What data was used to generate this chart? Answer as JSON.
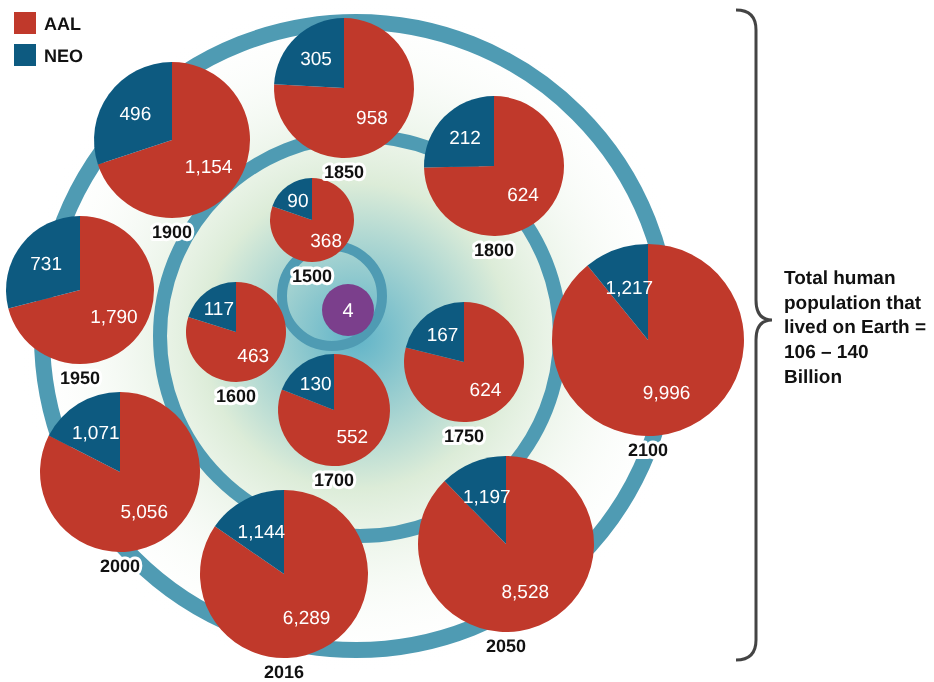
{
  "chart_data": [
    {
      "type": "pie",
      "title": "1500",
      "categories": [
        "AAL",
        "NEO"
      ],
      "values": [
        368,
        90
      ],
      "colors": [
        "#c0392b",
        "#0d5a80"
      ],
      "data_labels": true,
      "legend": "top left"
    },
    {
      "type": "pie",
      "title": "1600",
      "categories": [
        null,
        null
      ],
      "values": [
        463,
        117
      ],
      "colors": [
        "#c0392b",
        "#0d5a80"
      ],
      "data_labels": true
    },
    {
      "type": "pie",
      "title": "1700",
      "categories": [
        null,
        null
      ],
      "values": [
        552,
        130
      ],
      "colors": [
        "#c0392b",
        "#0d5a80"
      ],
      "data_labels": true
    },
    {
      "type": "pie",
      "title": "1750",
      "categories": [
        null,
        null
      ],
      "values": [
        624,
        167
      ],
      "colors": [
        "#c0392b",
        "#0d5a80"
      ],
      "data_labels": true
    },
    {
      "type": "pie",
      "title": "1800",
      "categories": [
        null,
        null
      ],
      "values": [
        624,
        212
      ],
      "colors": [
        "#c0392b",
        "#0d5a80"
      ],
      "data_labels": true
    },
    {
      "type": "pie",
      "title": "1850",
      "categories": [
        null,
        null
      ],
      "values": [
        958,
        305
      ],
      "colors": [
        "#c0392b",
        "#0d5a80"
      ],
      "data_labels": true
    },
    {
      "type": "pie",
      "title": "1900",
      "categories": [
        null,
        null
      ],
      "values": [
        1154,
        496
      ],
      "value_labels": [
        "1,154",
        "496"
      ],
      "colors": [
        "#c0392b",
        "#0d5a80"
      ]
    },
    {
      "type": "pie",
      "title": "1950",
      "categories": [
        null,
        null
      ],
      "values": [
        1790,
        731
      ],
      "value_labels": [
        "1,790",
        "731"
      ],
      "colors": [
        "#c0392b",
        "#0d5a80"
      ]
    },
    {
      "type": "pie",
      "title": "2000",
      "categories": [
        null,
        null
      ],
      "values": [
        5056,
        1071
      ],
      "value_labels": [
        "5,056",
        "1,071"
      ],
      "colors": [
        "#c0392b",
        "#0d5a80"
      ]
    },
    {
      "type": "pie",
      "title": "2016",
      "categories": [
        null,
        null
      ],
      "values": [
        6289,
        1144
      ],
      "value_labels": [
        "6,289",
        "1,144"
      ],
      "colors": [
        "#c0392b",
        "#0d5a80"
      ]
    },
    {
      "type": "pie",
      "title": "2050",
      "categories": [
        null,
        null
      ],
      "values": [
        8528,
        1197
      ],
      "value_labels": [
        "8,528",
        "1,197"
      ],
      "colors": [
        "#c0392b",
        "#0d5a80"
      ]
    },
    {
      "type": "pie",
      "title": "2100",
      "categories": [
        null,
        null
      ],
      "values": [
        9996,
        1217
      ],
      "value_labels": [
        "9,996",
        "1,217"
      ],
      "colors": [
        "#c0392b",
        "#0d5a80"
      ]
    },
    {
      "type": "other",
      "annotations": [
        "4"
      ]
    },
    {
      "type": "other",
      "annotations": [
        "Total human population that lived on Earth = 106 – 140 Billion"
      ]
    }
  ]
}
